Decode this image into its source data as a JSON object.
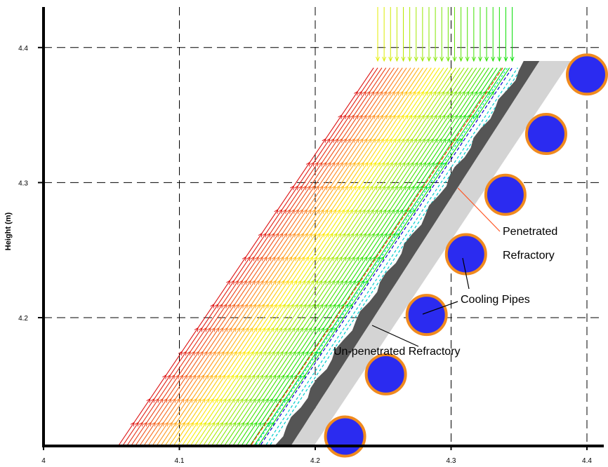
{
  "chart_data": {
    "type": "vector-field",
    "title": "",
    "xlabel": "",
    "ylabel": "Height (m)",
    "xlim": [
      4.0,
      4.4
    ],
    "ylim": [
      4.105,
      4.43
    ],
    "x_ticks": [
      "4",
      "4.1",
      "4.2",
      "4.3",
      "4.4"
    ],
    "y_ticks": [
      "4.2",
      "4.3",
      "4.4"
    ],
    "x_tick_values": [
      4.0,
      4.1,
      4.2,
      4.3,
      4.4
    ],
    "y_tick_values": [
      4.2,
      4.3,
      4.4
    ],
    "grid": true,
    "colors": {
      "vector_low": "#dd1111",
      "vector_mid": "#ffee00",
      "vector_high": "#00dd00",
      "contour_cyan": "#00cccc",
      "contour_blue": "#0000cc",
      "contour_red": "#ff3300",
      "penetrated_layer": "#555555",
      "unpenetrated_layer": "#d4d4d4",
      "pipe_fill": "#2b2bf0",
      "pipe_edge": "#f08a1e",
      "leader_line": "#ff5522"
    },
    "layers": {
      "penetrated_refractory": {
        "bottom": [
          4.17,
          4.105
        ],
        "top": [
          4.355,
          4.39
        ]
      },
      "unpenetrated_refractory": {
        "bottom": [
          4.187,
          4.105
        ],
        "top": [
          4.37,
          4.39
        ]
      }
    },
    "cooling_pipes": [
      {
        "x": 4.222,
        "y": 4.112
      },
      {
        "x": 4.252,
        "y": 4.158
      },
      {
        "x": 4.282,
        "y": 4.202
      },
      {
        "x": 4.311,
        "y": 4.247
      },
      {
        "x": 4.34,
        "y": 4.291
      },
      {
        "x": 4.37,
        "y": 4.336
      },
      {
        "x": 4.4,
        "y": 4.38
      }
    ],
    "annotations": [
      {
        "id": "penetrated",
        "lines": [
          "Penetrated",
          "Refractory"
        ],
        "target": [
          4.305,
          4.296
        ]
      },
      {
        "id": "cooling",
        "lines": [
          "Cooling Pipes"
        ],
        "target": [
          4.29,
          4.203
        ]
      },
      {
        "id": "unpenetrated",
        "lines": [
          "Un-penetrated Refractory"
        ],
        "target": [
          4.248,
          4.193
        ]
      }
    ]
  }
}
